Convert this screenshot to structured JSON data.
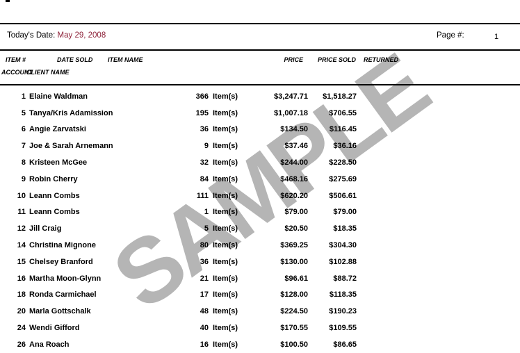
{
  "page": {
    "watermark": "SAMPLE",
    "watermark_color": "#b5b5b5"
  },
  "header": {
    "todays_date_label": "Today's Date:",
    "todays_date_value": "May 29, 2008",
    "date_color": "#8e2239",
    "page_label": "Page #:",
    "page_number": "1"
  },
  "columns": {
    "item_no": "ITEM #",
    "date_sold": "DATE SOLD",
    "item_name": "ITEM NAME",
    "price": "PRICE",
    "price_sold": "PRICE SOLD",
    "returned": "RETURNED",
    "account": "ACCOUNT",
    "client_name": "CLIENT NAME"
  },
  "table": {
    "items_label": "Item(s)",
    "rows": [
      {
        "account": "1",
        "client": "Elaine Waldman",
        "items": "366",
        "price": "$3,247.71",
        "price_sold": "$1,518.27"
      },
      {
        "account": "5",
        "client": "Tanya/Kris Adamission",
        "items": "195",
        "price": "$1,007.18",
        "price_sold": "$706.55"
      },
      {
        "account": "6",
        "client": "Angie Zarvatski",
        "items": "36",
        "price": "$134.50",
        "price_sold": "$116.45"
      },
      {
        "account": "7",
        "client": "Joe & Sarah Arnemann",
        "items": "9",
        "price": "$37.46",
        "price_sold": "$36.16"
      },
      {
        "account": "8",
        "client": "Kristeen McGee",
        "items": "32",
        "price": "$244.00",
        "price_sold": "$228.50"
      },
      {
        "account": "9",
        "client": "Robin Cherry",
        "items": "84",
        "price": "$468.16",
        "price_sold": "$275.69"
      },
      {
        "account": "10",
        "client": "Leann Combs",
        "items": "111",
        "price": "$620.20",
        "price_sold": "$506.61"
      },
      {
        "account": "11",
        "client": "Leann Combs",
        "items": "1",
        "price": "$79.00",
        "price_sold": "$79.00"
      },
      {
        "account": "12",
        "client": "Jill Craig",
        "items": "5",
        "price": "$20.50",
        "price_sold": "$18.35"
      },
      {
        "account": "14",
        "client": "Christina Mignone",
        "items": "80",
        "price": "$369.25",
        "price_sold": "$304.30"
      },
      {
        "account": "15",
        "client": "Chelsey Branford",
        "items": "36",
        "price": "$130.00",
        "price_sold": "$102.88"
      },
      {
        "account": "16",
        "client": "Martha Moon-Glynn",
        "items": "21",
        "price": "$96.61",
        "price_sold": "$88.72"
      },
      {
        "account": "18",
        "client": "Ronda Carmichael",
        "items": "17",
        "price": "$128.00",
        "price_sold": "$118.35"
      },
      {
        "account": "20",
        "client": "Marla Gottschalk",
        "items": "48",
        "price": "$224.50",
        "price_sold": "$190.23"
      },
      {
        "account": "24",
        "client": "Wendi Gifford",
        "items": "40",
        "price": "$170.55",
        "price_sold": "$109.55"
      },
      {
        "account": "26",
        "client": "Ana Roach",
        "items": "16",
        "price": "$100.50",
        "price_sold": "$86.65"
      }
    ]
  }
}
